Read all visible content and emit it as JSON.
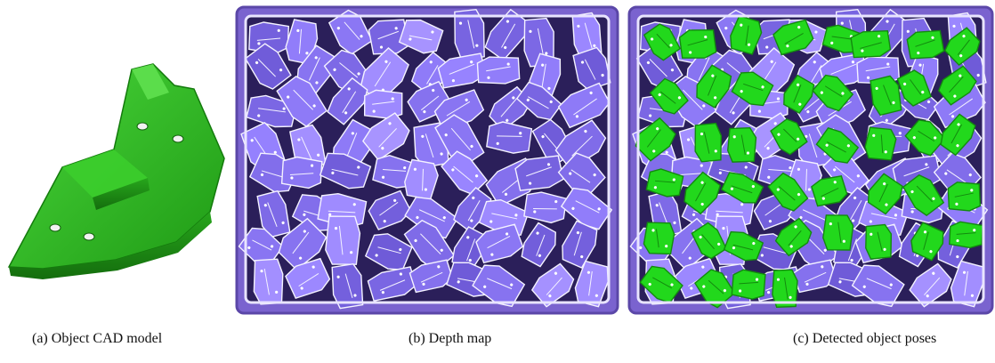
{
  "figure": {
    "panels": [
      {
        "id": "a",
        "caption": "(a) Object CAD model"
      },
      {
        "id": "b",
        "caption": "(b) Depth map"
      },
      {
        "id": "c",
        "caption": "(c) Detected object poses"
      }
    ]
  },
  "colors": {
    "cad_green": "#2fc21f",
    "depth_purple": "#8a73d8",
    "depth_dark": "#2b1f5a",
    "pose_green": "#22d81c"
  },
  "detections": {
    "count": 44
  }
}
